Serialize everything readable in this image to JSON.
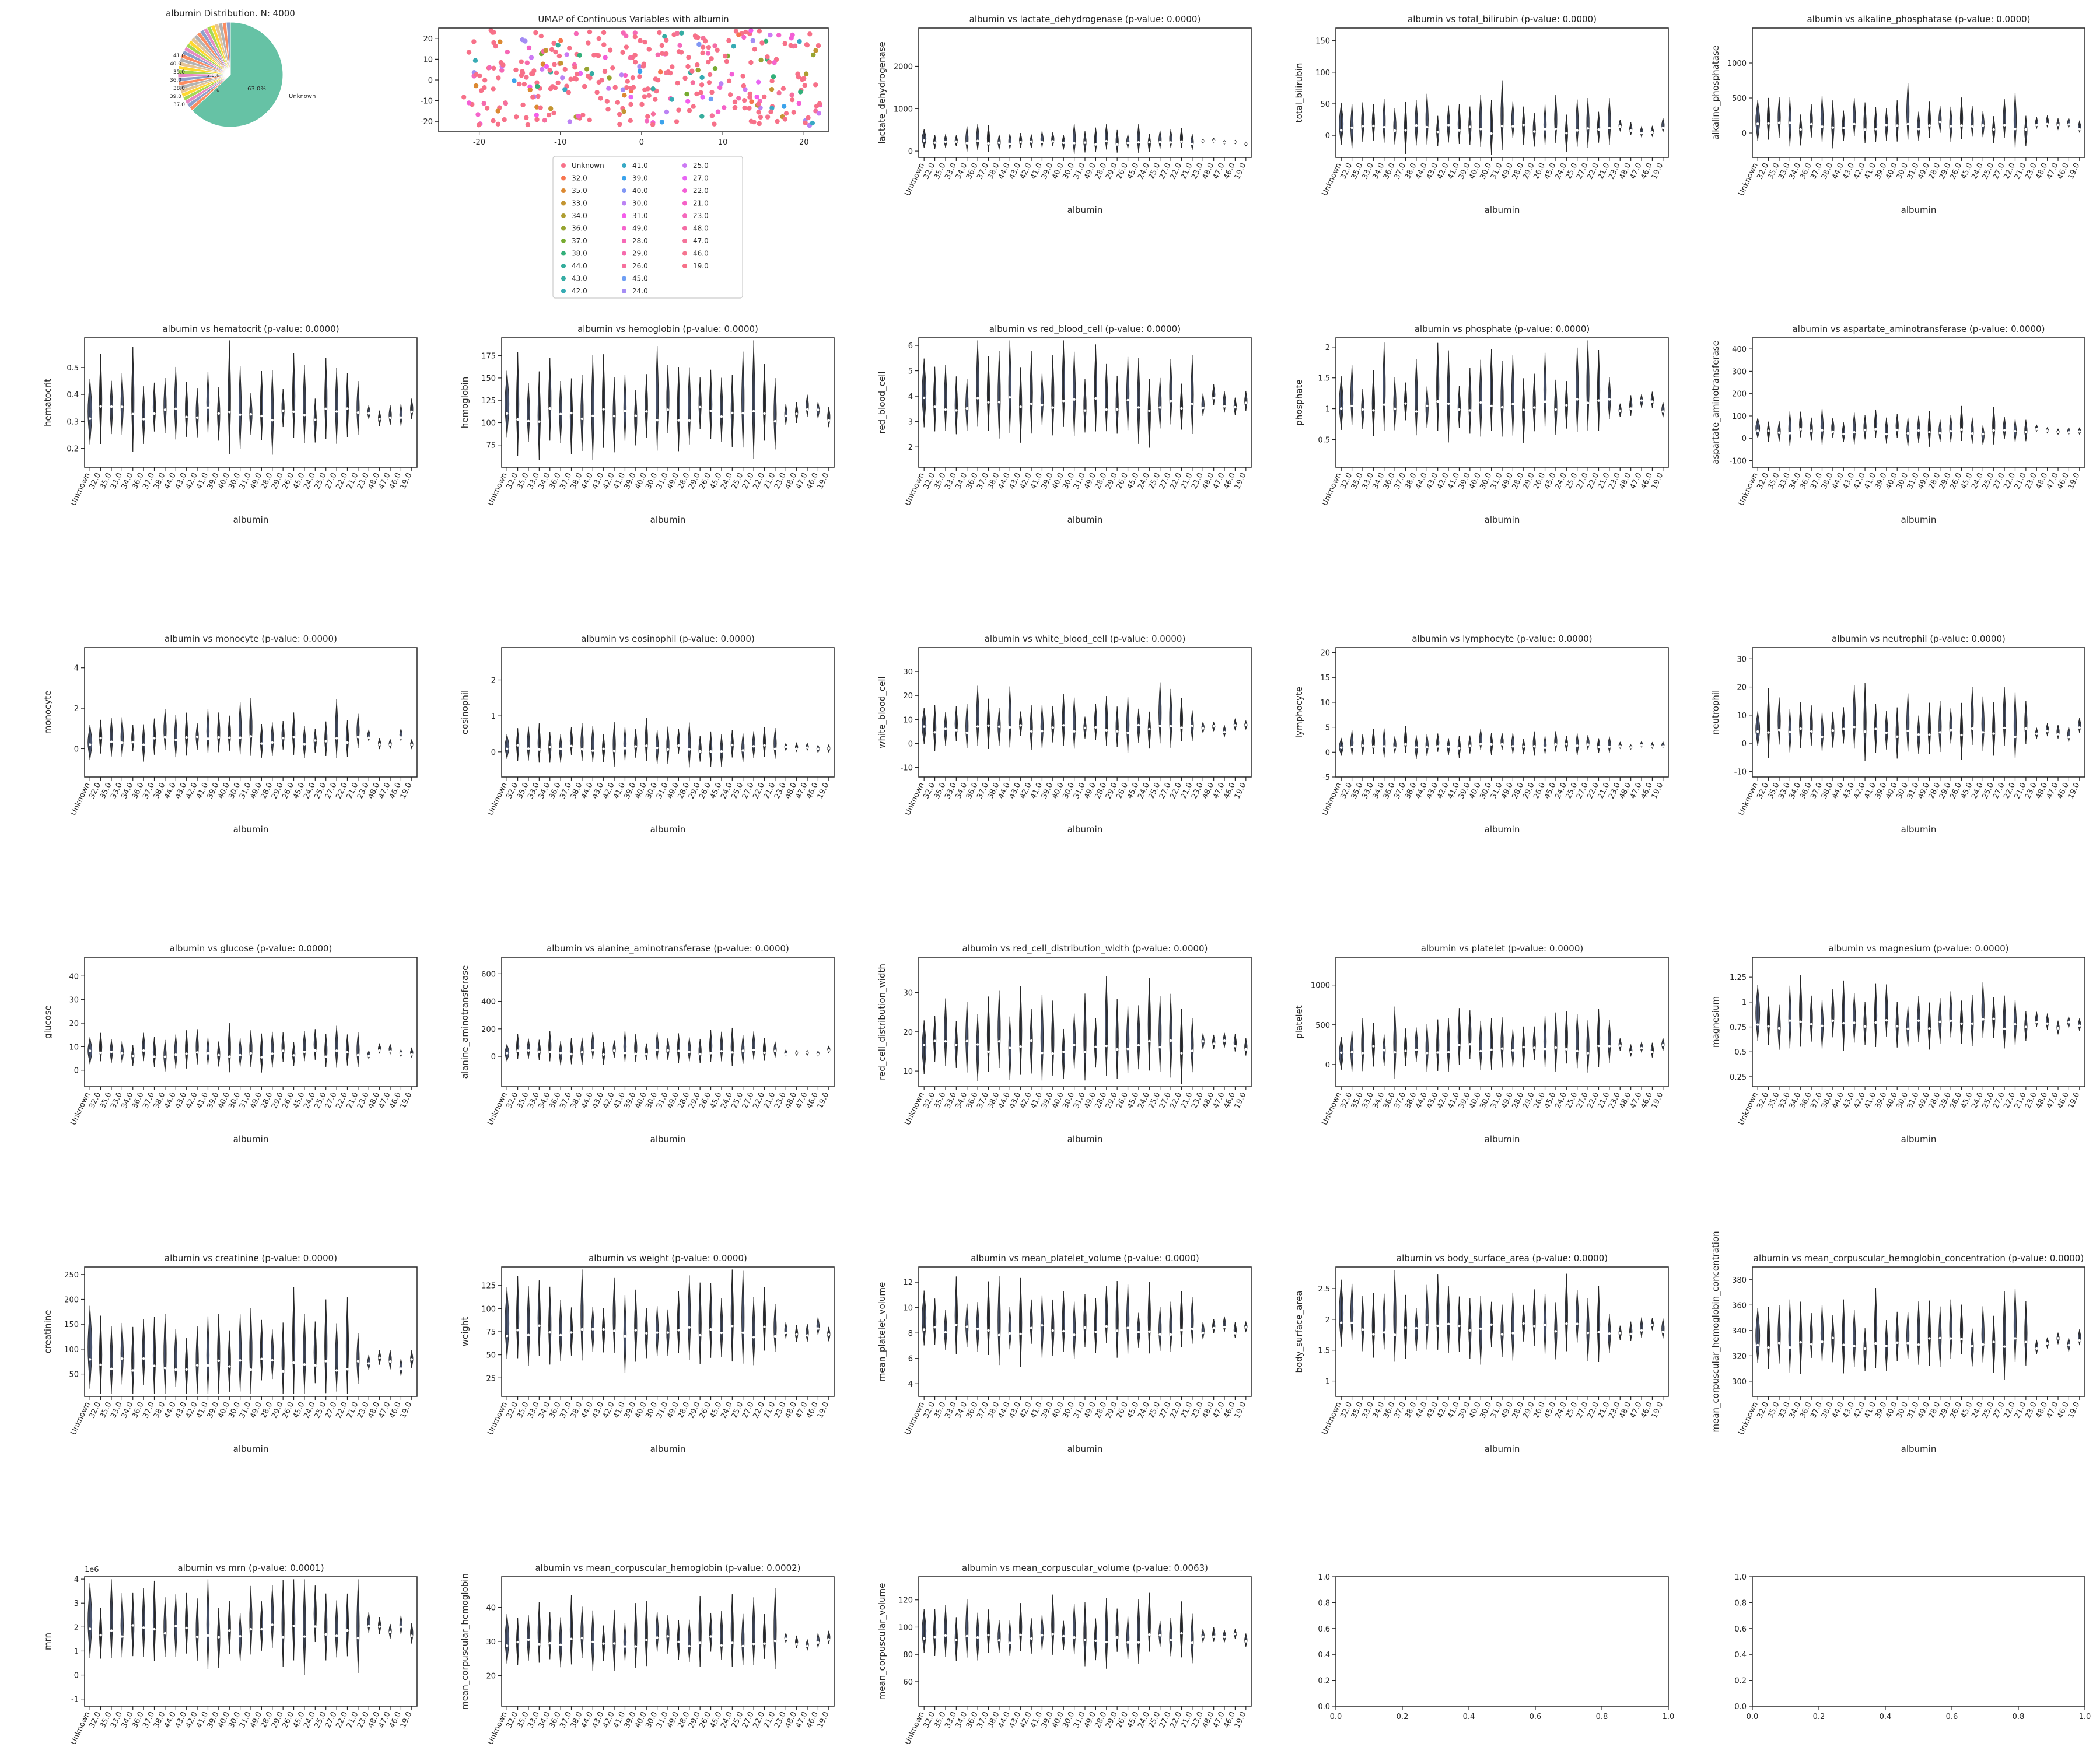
{
  "figure": {
    "categories": [
      "Unknown",
      "32.0",
      "35.0",
      "33.0",
      "34.0",
      "36.0",
      "37.0",
      "38.0",
      "44.0",
      "43.0",
      "42.0",
      "41.0",
      "39.0",
      "40.0",
      "30.0",
      "31.0",
      "49.0",
      "28.0",
      "29.0",
      "26.0",
      "45.0",
      "24.0",
      "25.0",
      "27.0",
      "22.0",
      "21.0",
      "23.0",
      "48.0",
      "47.0",
      "46.0",
      "19.0"
    ],
    "violin_color": "#4a5570",
    "axis_color": "#262626",
    "xlabel": "albumin"
  },
  "chart_data": [
    {
      "type": "pie",
      "title": "albumin Distribution. N: 4000",
      "big_slice_label": "Unknown",
      "big_slice_pct": "63.0%",
      "big_slice_value": 63.0,
      "small_labels": [
        "37.0",
        "39.0",
        "38.0",
        "36.0",
        "35.0",
        "40.0",
        "41.0"
      ],
      "small_pcts": [
        "3.6%",
        "2.6%"
      ],
      "colors": [
        "#66c2a5",
        "#fc8d62",
        "#8da0cb",
        "#e78ac3",
        "#a6d854",
        "#ffd92f",
        "#e5c494",
        "#b3b3b3"
      ]
    },
    {
      "type": "scatter",
      "title": "UMAP of Continuous Variables with albumin",
      "xlim": [
        -25,
        23
      ],
      "ylim": [
        -25,
        25
      ],
      "xticks": [
        -20,
        -10,
        0,
        10,
        20
      ],
      "yticks": [
        -20,
        -10,
        0,
        10,
        20
      ],
      "legend_labels": [
        "Unknown",
        "32.0",
        "35.0",
        "33.0",
        "34.0",
        "36.0",
        "37.0",
        "38.0",
        "44.0",
        "43.0",
        "42.0",
        "41.0",
        "39.0",
        "40.0",
        "30.0",
        "31.0",
        "49.0",
        "28.0",
        "29.0",
        "26.0",
        "45.0",
        "24.0",
        "25.0",
        "27.0",
        "22.0",
        "21.0",
        "23.0",
        "48.0",
        "47.0",
        "46.0",
        "19.0"
      ],
      "legend_colors": [
        "#f77189",
        "#f7754f",
        "#dc8932",
        "#c39532",
        "#ae9d31",
        "#97a431",
        "#77ab31",
        "#33b07a",
        "#35ad9c",
        "#36ada4",
        "#37abb4",
        "#38a9c5",
        "#3ba3ec",
        "#8197f4",
        "#bb83f4",
        "#f45deb",
        "#f565cc",
        "#f668b6",
        "#f66bad",
        "#f66f9d",
        "#6f9ff4",
        "#a48cf4",
        "#cc7af4",
        "#e866f4",
        "#f45fd6",
        "#f561c7",
        "#f569bd",
        "#f46da4",
        "#f4739a",
        "#f57590",
        "#f77189"
      ]
    },
    {
      "type": "violin",
      "title": "albumin vs lactate_dehydrogenase (p-value: 0.0000)",
      "ylabel": "lactate_dehydrogenase",
      "ylim": [
        -150,
        2900
      ],
      "yticks": [
        0,
        1000,
        2000
      ],
      "med": 200,
      "spread": 150
    },
    {
      "type": "violin",
      "title": "albumin vs total_bilirubin (p-value: 0.0000)",
      "ylabel": "total_bilirubin",
      "ylim": [
        -35,
        170
      ],
      "yticks": [
        0,
        50,
        100,
        150
      ],
      "med": 10,
      "spread": 25
    },
    {
      "type": "violin",
      "title": "albumin vs alkaline_phosphatase (p-value: 0.0000)",
      "ylabel": "alkaline_phosphatase",
      "ylim": [
        -350,
        1500
      ],
      "yticks": [
        0,
        500,
        1000
      ],
      "med": 100,
      "spread": 200
    },
    {
      "type": "violin",
      "title": "albumin vs hematocrit (p-value: 0.0000)",
      "ylabel": "hematocrit",
      "ylim": [
        0.13,
        0.61
      ],
      "yticks": [
        0.2,
        0.3,
        0.4,
        0.5
      ],
      "med": 0.33,
      "spread": 0.09
    },
    {
      "type": "violin",
      "title": "albumin vs hemoglobin (p-value: 0.0000)",
      "ylabel": "hemoglobin",
      "ylim": [
        50,
        195
      ],
      "yticks": [
        75,
        100,
        125,
        150,
        175
      ],
      "med": 110,
      "spread": 30
    },
    {
      "type": "violin",
      "title": "albumin vs red_blood_cell (p-value: 0.0000)",
      "ylabel": "red_blood_cell",
      "ylim": [
        1.2,
        6.3
      ],
      "yticks": [
        2,
        3,
        4,
        5,
        6
      ],
      "med": 3.7,
      "spread": 1.0
    },
    {
      "type": "violin",
      "title": "albumin vs phosphate (p-value: 0.0000)",
      "ylabel": "phosphate",
      "ylim": [
        0.05,
        2.15
      ],
      "yticks": [
        0.5,
        1.0,
        1.5,
        2.0
      ],
      "med": 1.05,
      "spread": 0.35
    },
    {
      "type": "violin",
      "title": "albumin vs aspartate_aminotransferase (p-value: 0.0000)",
      "ylabel": "aspartate_aminotransferase",
      "ylim": [
        -130,
        450
      ],
      "yticks": [
        -100,
        0,
        100,
        200,
        300,
        400
      ],
      "med": 30,
      "spread": 40
    },
    {
      "type": "violin",
      "title": "albumin vs monocyte (p-value: 0.0000)",
      "ylabel": "monocyte",
      "ylim": [
        -1.4,
        5.0
      ],
      "yticks": [
        0,
        2,
        4
      ],
      "med": 0.4,
      "spread": 0.7
    },
    {
      "type": "violin",
      "title": "albumin vs eosinophil (p-value: 0.0000)",
      "ylabel": "eosinophil",
      "ylim": [
        -0.7,
        2.9
      ],
      "yticks": [
        0,
        1,
        2
      ],
      "med": 0.1,
      "spread": 0.3
    },
    {
      "type": "violin",
      "title": "albumin vs white_blood_cell (p-value: 0.0000)",
      "ylabel": "white_blood_cell",
      "ylim": [
        -14,
        40
      ],
      "yticks": [
        -10,
        0,
        10,
        20,
        30
      ],
      "med": 6,
      "spread": 6
    },
    {
      "type": "violin",
      "title": "albumin vs lymphocyte (p-value: 0.0000)",
      "ylabel": "lymphocyte",
      "ylim": [
        -5,
        21
      ],
      "yticks": [
        -5,
        0,
        5,
        10,
        15,
        20
      ],
      "med": 1.2,
      "spread": 1.5
    },
    {
      "type": "violin",
      "title": "albumin vs neutrophil (p-value: 0.0000)",
      "ylabel": "neutrophil",
      "ylim": [
        -12,
        34
      ],
      "yticks": [
        -10,
        0,
        10,
        20,
        30
      ],
      "med": 4,
      "spread": 6
    },
    {
      "type": "violin",
      "title": "albumin vs glucose (p-value: 0.0000)",
      "ylabel": "glucose",
      "ylim": [
        -7,
        48
      ],
      "yticks": [
        0,
        10,
        20,
        30,
        40
      ],
      "med": 7,
      "spread": 5
    },
    {
      "type": "violin",
      "title": "albumin vs alanine_aminotransferase (p-value: 0.0000)",
      "ylabel": "alanine_aminotransferase",
      "ylim": [
        -220,
        720
      ],
      "yticks": [
        0,
        200,
        400,
        600
      ],
      "med": 30,
      "spread": 60
    },
    {
      "type": "violin",
      "title": "albumin vs red_cell_distribution_width (p-value: 0.0000)",
      "ylabel": "red_cell_distribution_width",
      "ylim": [
        6,
        39
      ],
      "yticks": [
        10,
        20,
        30
      ],
      "med": 16,
      "spread": 6
    },
    {
      "type": "violin",
      "title": "albumin vs platelet (p-value: 0.0000)",
      "ylabel": "platelet",
      "ylim": [
        -280,
        1350
      ],
      "yticks": [
        0,
        500,
        1000
      ],
      "med": 200,
      "spread": 200
    },
    {
      "type": "violin",
      "title": "albumin vs magnesium (p-value: 0.0000)",
      "ylabel": "magnesium",
      "ylim": [
        0.15,
        1.45
      ],
      "yticks": [
        0.25,
        0.5,
        0.75,
        1.0,
        1.25
      ],
      "med": 0.78,
      "spread": 0.18
    },
    {
      "type": "violin",
      "title": "albumin vs creatinine (p-value: 0.0000)",
      "ylabel": "creatinine",
      "ylim": [
        5,
        265
      ],
      "yticks": [
        50,
        100,
        150,
        200,
        250
      ],
      "med": 70,
      "spread": 50
    },
    {
      "type": "violin",
      "title": "albumin vs weight (p-value: 0.0000)",
      "ylabel": "weight",
      "ylim": [
        5,
        145
      ],
      "yticks": [
        25,
        50,
        75,
        100,
        125
      ],
      "med": 75,
      "spread": 25
    },
    {
      "type": "violin",
      "title": "albumin vs mean_platelet_volume (p-value: 0.0000)",
      "ylabel": "mean_platelet_volume",
      "ylim": [
        3,
        13.2
      ],
      "yticks": [
        4,
        6,
        8,
        10,
        12
      ],
      "med": 8.2,
      "spread": 1.5
    },
    {
      "type": "violin",
      "title": "albumin vs body_surface_area (p-value: 0.0000)",
      "ylabel": "body_surface_area",
      "ylim": [
        0.75,
        2.85
      ],
      "yticks": [
        1.0,
        1.5,
        2.0,
        2.5
      ],
      "med": 1.85,
      "spread": 0.35
    },
    {
      "type": "violin",
      "title": "albumin vs mean_corpuscular_hemoglobin_concentration (p-value: 0.0000)",
      "ylabel": "mean_corpuscular_hemoglobin_concentration",
      "ylim": [
        288,
        390
      ],
      "yticks": [
        300,
        320,
        340,
        360,
        380
      ],
      "med": 330,
      "spread": 15
    },
    {
      "type": "violin",
      "title": "albumin vs mrn (p-value: 0.0001)",
      "ylabel": "mrn",
      "offset_label": "1e6",
      "ylim": [
        -1.3,
        4.1
      ],
      "yticks": [
        -1,
        0,
        1,
        2,
        3,
        4
      ],
      "med": 1.8,
      "spread": 1.0
    },
    {
      "type": "violin",
      "title": "albumin vs mean_corpuscular_hemoglobin (p-value: 0.0002)",
      "ylabel": "mean_corpuscular_hemoglobin",
      "ylim": [
        11,
        49
      ],
      "yticks": [
        20,
        30,
        40
      ],
      "med": 30,
      "spread": 5
    },
    {
      "type": "violin",
      "title": "albumin vs mean_corpuscular_volume (p-value: 0.0063)",
      "ylabel": "mean_corpuscular_volume",
      "ylim": [
        42,
        137
      ],
      "yticks": [
        60,
        80,
        100,
        120
      ],
      "med": 92,
      "spread": 12
    },
    {
      "type": "empty",
      "title": "",
      "xlim": [
        0,
        1
      ],
      "ylim": [
        0,
        1
      ],
      "xticks": [
        "0.0",
        "0.2",
        "0.4",
        "0.6",
        "0.8",
        "1.0"
      ],
      "yticks": [
        "0.0",
        "0.2",
        "0.4",
        "0.6",
        "0.8",
        "1.0"
      ]
    },
    {
      "type": "empty",
      "title": "",
      "xlim": [
        0,
        1
      ],
      "ylim": [
        0,
        1
      ],
      "xticks": [
        "0.0",
        "0.2",
        "0.4",
        "0.6",
        "0.8",
        "1.0"
      ],
      "yticks": [
        "0.0",
        "0.2",
        "0.4",
        "0.6",
        "0.8",
        "1.0"
      ]
    }
  ]
}
